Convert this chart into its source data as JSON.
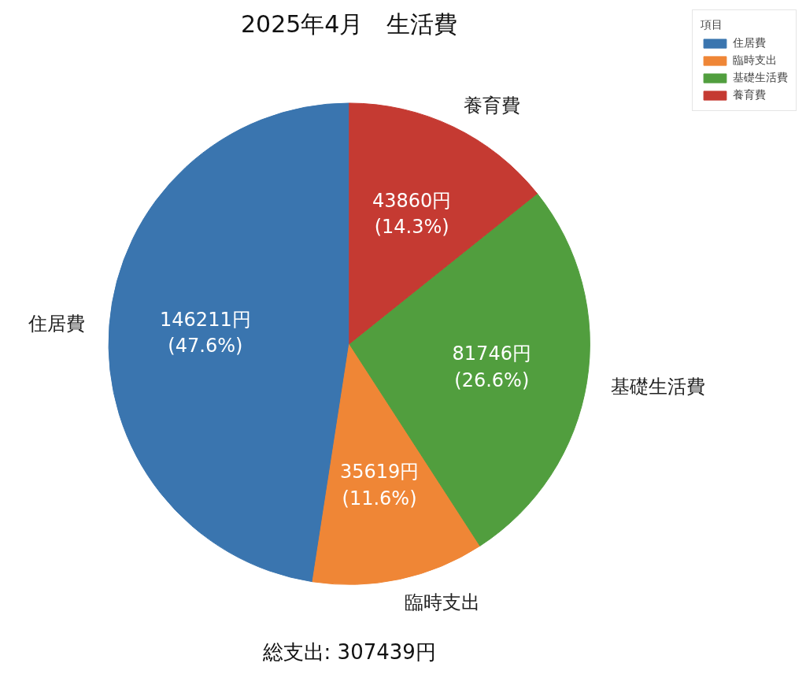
{
  "chart_data": {
    "type": "pie",
    "title": "2025年4月　生活費",
    "categories": [
      "住居費",
      "臨時支出",
      "基礎生活費",
      "養育費"
    ],
    "values": [
      146211,
      35619,
      81746,
      43860
    ],
    "colors": [
      "#3a75af",
      "#ef8636",
      "#519e3e",
      "#c53a32"
    ],
    "value_labels": [
      "146211円\n(47.6%)",
      "35619円\n(11.6%)",
      "81746円\n(26.6%)",
      "43860円\n(14.3%)"
    ],
    "legend": "top right",
    "legend_title": "項目",
    "annotations": [
      "総支出: 307439円"
    ]
  }
}
